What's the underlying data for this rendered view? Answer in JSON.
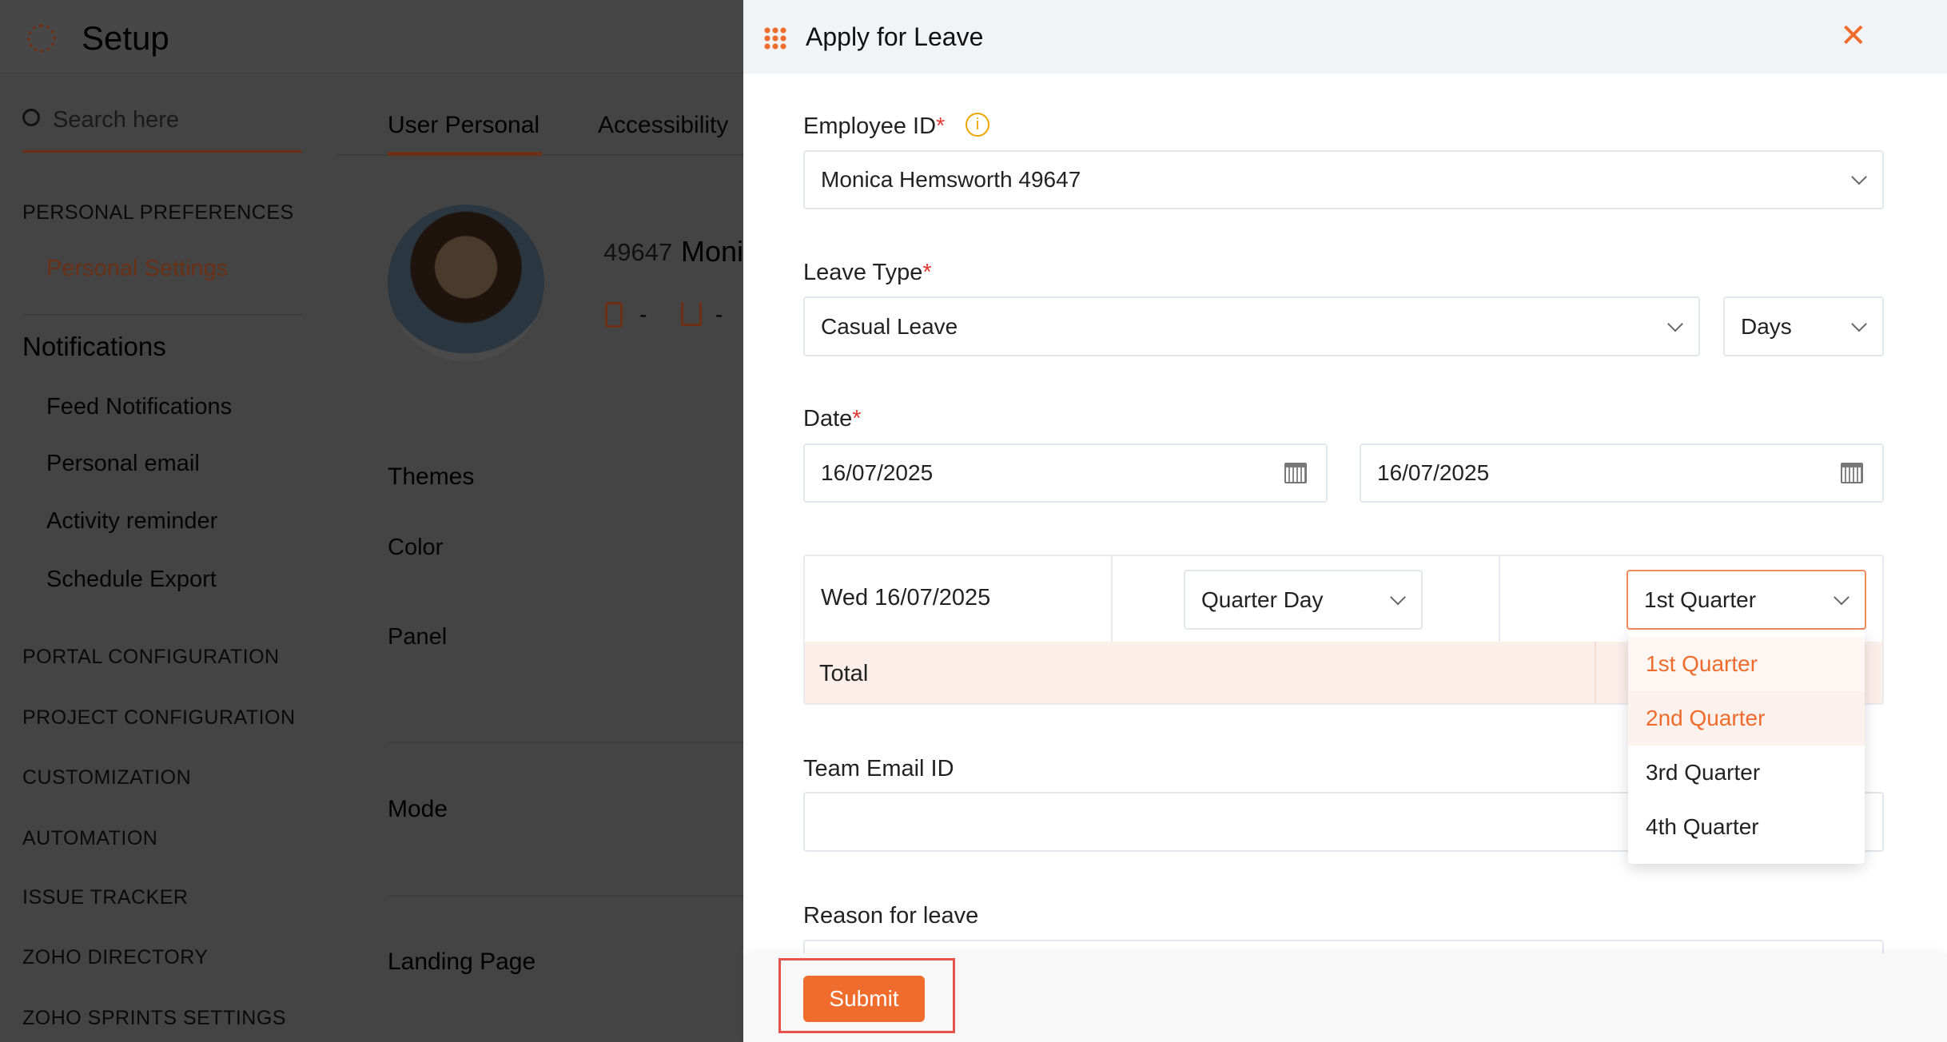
{
  "background": {
    "title": "Setup",
    "search_placeholder": "Search here",
    "sidebar": {
      "section1": "PERSONAL PREFERENCES",
      "personal_settings": "Personal Settings",
      "notifications": "Notifications",
      "items": [
        "Feed Notifications",
        "Personal email",
        "Activity reminder",
        "Schedule Export"
      ],
      "sections": [
        "PORTAL CONFIGURATION",
        "PROJECT CONFIGURATION",
        "CUSTOMIZATION",
        "AUTOMATION",
        "ISSUE TRACKER",
        "ZOHO DIRECTORY",
        "ZOHO SPRINTS SETTINGS"
      ]
    },
    "tabs": [
      "User Personal",
      "Accessibility"
    ],
    "user_id": "49647",
    "user_name": "Moni",
    "phone": "-",
    "home": "-",
    "themes": "Themes",
    "color": "Color",
    "panel": "Panel",
    "mode": "Mode",
    "landing_page": "Landing Page"
  },
  "modal": {
    "title": "Apply for Leave",
    "employee_label": "Employee ID",
    "employee_value": "Monica Hemsworth 49647",
    "leave_type_label": "Leave Type",
    "leave_type_value": "Casual Leave",
    "unit_value": "Days",
    "date_label": "Date",
    "from_date": "16/07/2025",
    "to_date": "16/07/2025",
    "row_date": "Wed 16/07/2025",
    "day_type": "Quarter Day",
    "quarter": "1st Quarter",
    "total_label": "Total",
    "quarter_options": [
      "1st Quarter",
      "2nd Quarter",
      "3rd Quarter",
      "4th Quarter"
    ],
    "selected_option": "1st Quarter",
    "hovered_option": "2nd Quarter",
    "team_email_label": "Team Email ID",
    "team_email_value": "",
    "reason_label": "Reason for leave",
    "submit": "Submit",
    "required_mark": "*"
  },
  "colors": {
    "accent": "#ef6c2c",
    "highlight_box": "#e5534b",
    "total_bg": "#fcefea"
  }
}
